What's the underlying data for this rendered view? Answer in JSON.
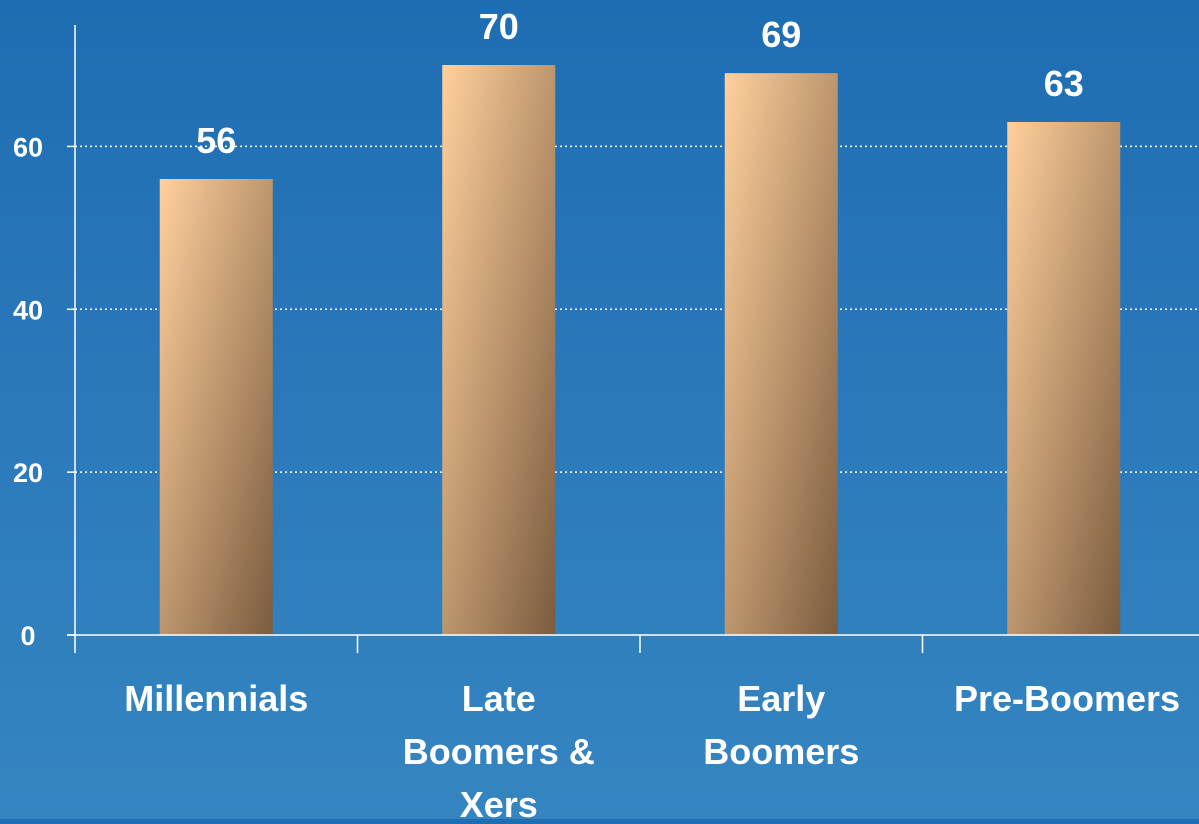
{
  "chart_data": {
    "type": "bar",
    "categories": [
      [
        "Millennials"
      ],
      [
        "Late",
        "Boomers &",
        "Xers"
      ],
      [
        "Early",
        "Boomers"
      ],
      [
        "Pre-Boomers"
      ]
    ],
    "values": [
      56,
      70,
      69,
      63
    ],
    "data_labels": [
      "56",
      "70",
      "69",
      "63"
    ],
    "y_ticks": [
      0,
      20,
      40,
      60
    ],
    "y_tick_labels": [
      "0",
      "20",
      "40",
      "60"
    ],
    "ylim": [
      0,
      75
    ],
    "grid": true,
    "legend": "none"
  },
  "colors": {
    "background_top": "#1e6db2",
    "background_bottom": "#3585c1",
    "bar_light": "#ffd09c",
    "bar_dark": "#7b5c3f",
    "axis": "#ffffff",
    "gridline": "#ffffff",
    "text": "#ffffff"
  }
}
